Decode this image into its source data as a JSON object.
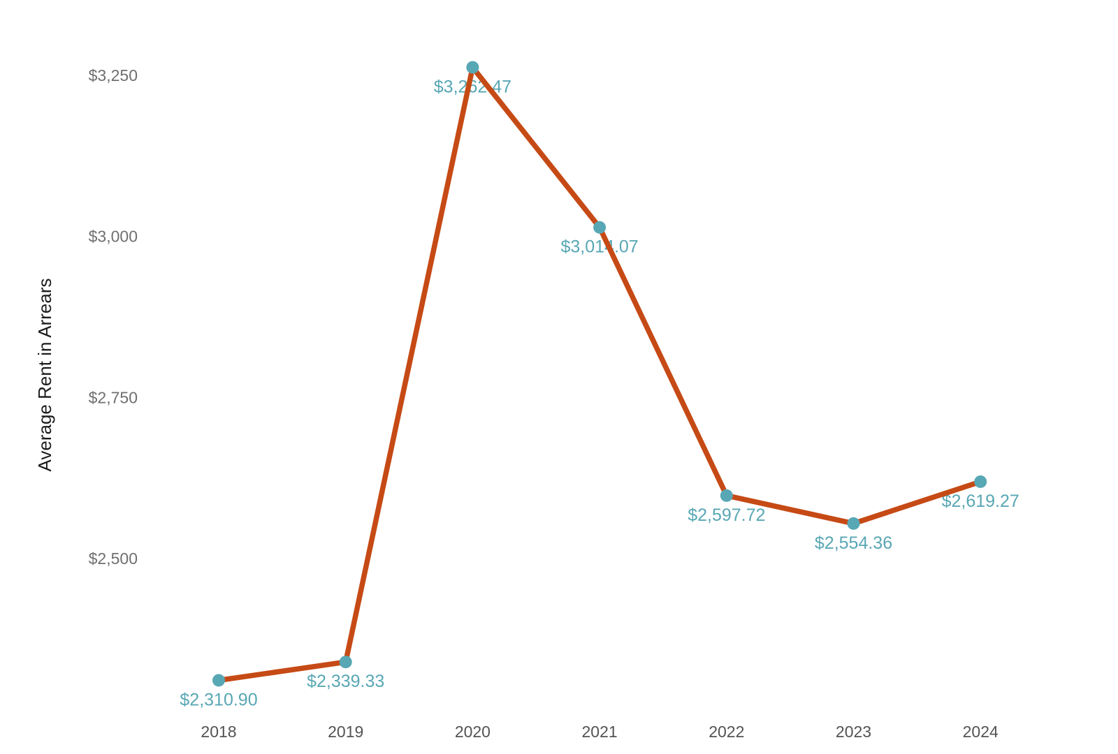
{
  "page": {
    "background_color": "#ffffff"
  },
  "chart_data": {
    "type": "line",
    "title": "",
    "xlabel": "",
    "ylabel": "Average Rent in Arrears",
    "categories": [
      "2018",
      "2019",
      "2020",
      "2021",
      "2022",
      "2023",
      "2024"
    ],
    "series": [
      {
        "name": "Average Rent in Arrears",
        "values": [
          2310.9,
          2339.33,
          3262.47,
          3014.07,
          2597.72,
          2554.36,
          2619.27
        ]
      }
    ],
    "point_labels": [
      "$2,310.90",
      "$2,339.33",
      "$3,262.47",
      "$3,014.07",
      "$2,597.72",
      "$2,554.36",
      "$2,619.27"
    ],
    "y_axis": {
      "ticks": [
        {
          "value": 2500,
          "label": "$2,500"
        },
        {
          "value": 2750,
          "label": "$2,750"
        },
        {
          "value": 3000,
          "label": "$3,000"
        },
        {
          "value": 3250,
          "label": "$3,250"
        }
      ],
      "range_shown": [
        2280,
        3300
      ]
    },
    "grid": false,
    "legend_position": "none",
    "marker_shape": "circle",
    "colors": {
      "line": "#c64a15",
      "marker": "#58a7b4",
      "point_label": "#58a7b4",
      "y_tick_label": "#6f6f6f",
      "x_tick_label": "#535353",
      "axis_title": "#1b1b1b"
    }
  }
}
